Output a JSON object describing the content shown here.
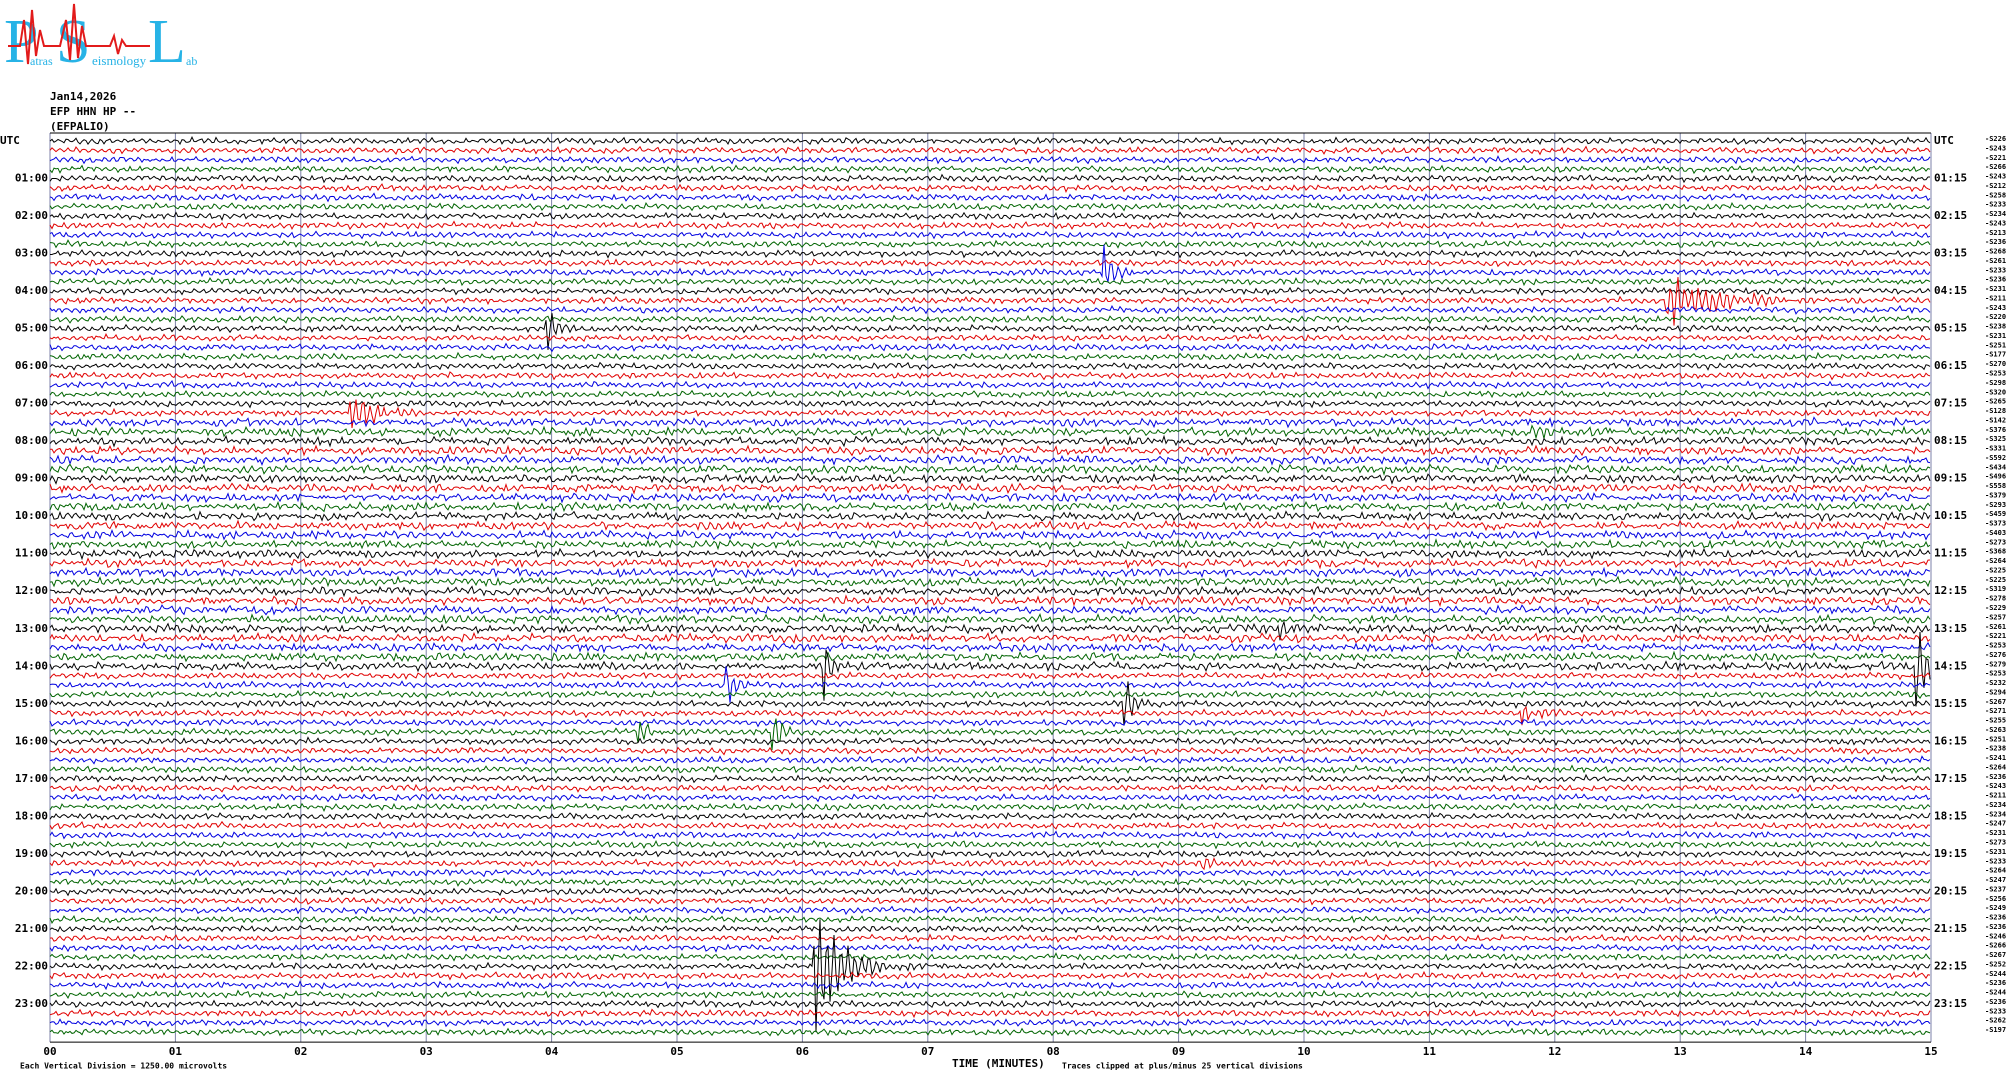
{
  "logo": {
    "letters": [
      "P",
      "S",
      "L"
    ],
    "small": [
      "atras",
      "eismology",
      "ab"
    ]
  },
  "header": {
    "date": "Jan14,2026",
    "channel": "EFP HHN HP --",
    "station": "(EFPALIO)"
  },
  "left_labels": [
    "UTC",
    "01:00",
    "02:00",
    "03:00",
    "04:00",
    "05:00",
    "06:00",
    "07:00",
    "08:00",
    "09:00",
    "10:00",
    "11:00",
    "12:00",
    "13:00",
    "14:00",
    "15:00",
    "16:00",
    "17:00",
    "18:00",
    "19:00",
    "20:00",
    "21:00",
    "22:00",
    "23:00"
  ],
  "right_labels": [
    "UTC",
    "01:15",
    "02:15",
    "03:15",
    "04:15",
    "05:15",
    "06:15",
    "07:15",
    "08:15",
    "09:15",
    "10:15",
    "11:15",
    "12:15",
    "13:15",
    "14:15",
    "15:15",
    "16:15",
    "17:15",
    "18:15",
    "19:15",
    "20:15",
    "21:15",
    "22:15",
    "23:15"
  ],
  "offsets": [
    "-S226",
    "-S243",
    "-S221",
    "-S266",
    "-S243",
    "-S212",
    "-S258",
    "-S233",
    "-S234",
    "-S243",
    "-S213",
    "-S236",
    "-S268",
    "-S261",
    "-S233",
    "-S236",
    "-S231",
    "-S211",
    "-S243",
    "-S220",
    "-S238",
    "-S231",
    "-S251",
    "-S177",
    "-S270",
    "-S253",
    "-S298",
    "-S320",
    "-S265",
    "-S128",
    "-S142",
    "-S376",
    "-S325",
    "-S331",
    "-S592",
    "-S434",
    "-S496",
    "-S558",
    "-S379",
    "-S293",
    "-S459",
    "-S373",
    "-S403",
    "-S273",
    "-S368",
    "-S264",
    "-S225",
    "-S225",
    "-S319",
    "-S278",
    "-S229",
    "-S257",
    "-S261",
    "-S221",
    "-S253",
    "-S276",
    "-S279",
    "-S253",
    "-S232",
    "-S294",
    "-S267",
    "-S271",
    "-S255",
    "-S263",
    "-S251",
    "-S238",
    "-S241",
    "-S264",
    "-S236",
    "-S243",
    "-S211",
    "-S234",
    "-S234",
    "-S247",
    "-S231",
    "-S273",
    "-S231",
    "-S233",
    "-S264",
    "-S247",
    "-S237",
    "-S256",
    "-S249",
    "-S236",
    "-S236",
    "-S246",
    "-S266",
    "-S267",
    "-S252",
    "-S244",
    "-S236",
    "-S244",
    "-S236",
    "-S233",
    "-S262",
    "-S197"
  ],
  "x_ticks": [
    "00",
    "01",
    "02",
    "03",
    "04",
    "05",
    "06",
    "07",
    "08",
    "09",
    "10",
    "11",
    "12",
    "13",
    "14",
    "15"
  ],
  "footer": {
    "scale": "Each Vertical Division = 1250.00 microvolts",
    "x_title": "TIME (MINUTES)",
    "clip": "Traces clipped at plus/minus 25 vertical divisions"
  }
}
